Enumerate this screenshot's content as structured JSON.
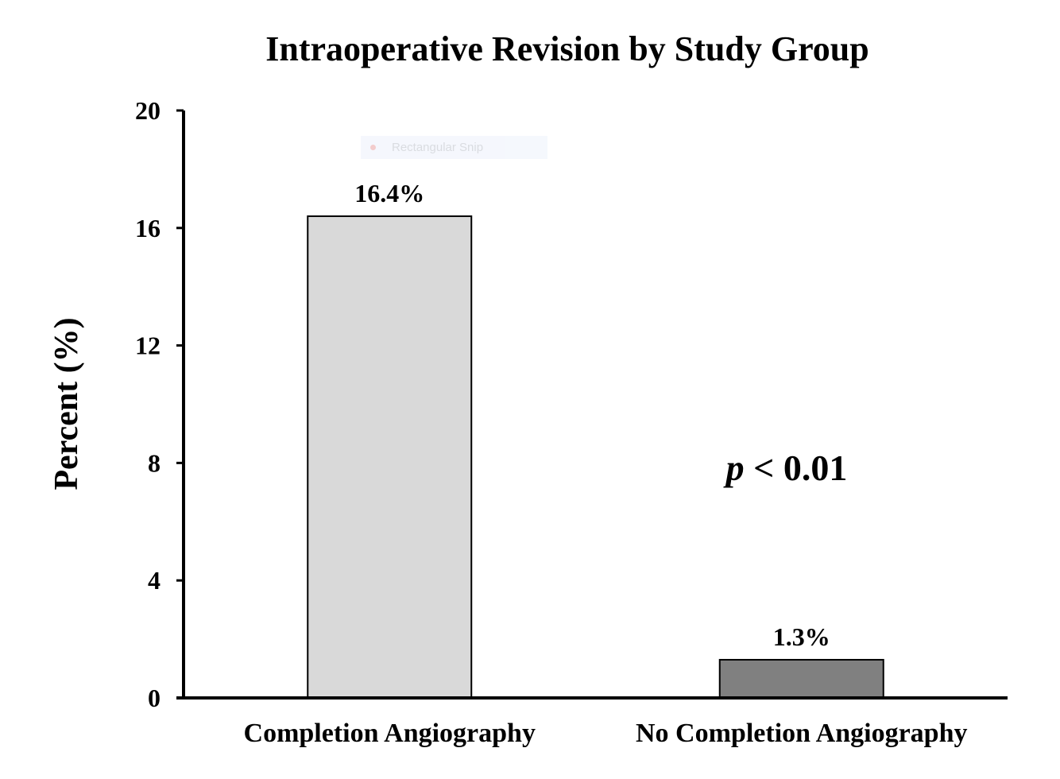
{
  "chart_data": {
    "type": "bar",
    "title": "Intraoperative Revision by Study Group",
    "xlabel": "",
    "ylabel": "Percent (%)",
    "categories": [
      "Completion Angiography",
      "No Completion Angiography"
    ],
    "values": [
      16.4,
      1.3
    ],
    "value_labels": [
      "16.4%",
      "1.3%"
    ],
    "bar_colors": [
      "#d9d9d9",
      "#808080"
    ],
    "ylim": [
      0,
      20
    ],
    "yticks": [
      0,
      4,
      8,
      12,
      16,
      20
    ],
    "grid": false,
    "legend": "none",
    "annotation": {
      "italic_part": "p",
      "rest": " < 0.01"
    }
  },
  "overlay": {
    "snip_label": "Rectangular Snip"
  }
}
